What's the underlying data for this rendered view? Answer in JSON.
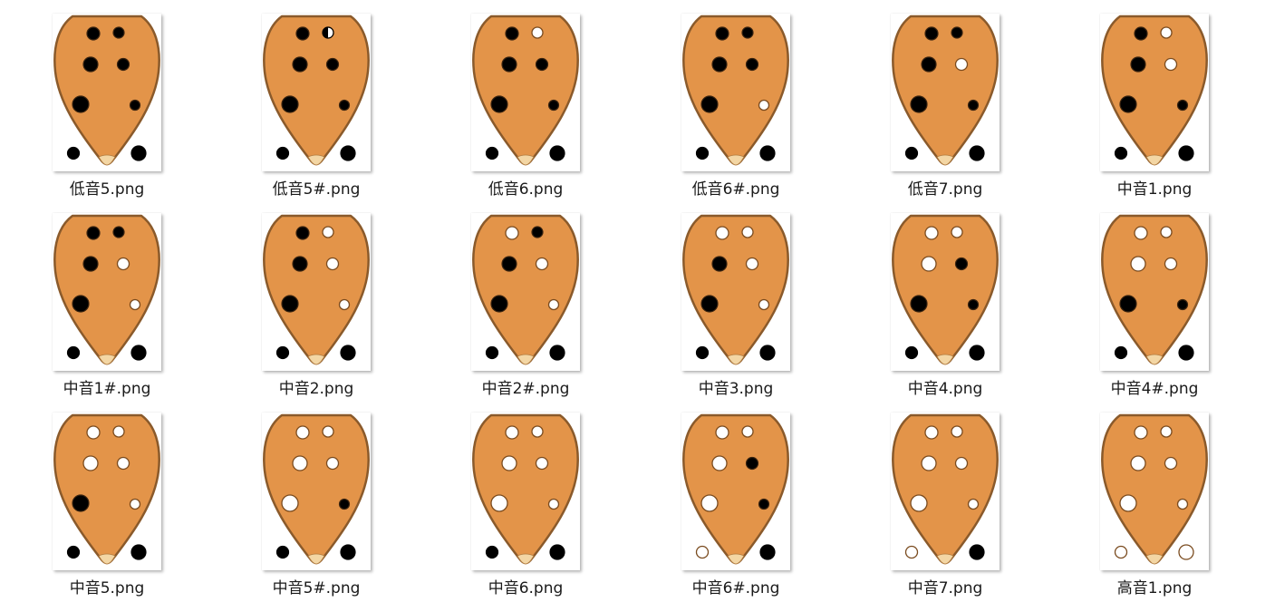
{
  "view": {
    "colors": {
      "body": "#e39449",
      "outline": "#8a5a2b",
      "hole_closed": "#000000",
      "hole_open": "#ffffff",
      "hole_rim": "#7a4b1f",
      "mouthpiece": "#f3d6a4"
    },
    "files": [
      {
        "name": "低音5.png",
        "holes": {
          "t1": 1,
          "t2": 1,
          "l2": 1,
          "r2": 1,
          "l3": 1,
          "r3": 1,
          "bl": 1,
          "br": 1
        }
      },
      {
        "name": "低音5#.png",
        "holes": {
          "t1": 1,
          "t2": "half",
          "l2": 1,
          "r2": 1,
          "l3": 1,
          "r3": 1,
          "bl": 1,
          "br": 1
        }
      },
      {
        "name": "低音6.png",
        "holes": {
          "t1": 1,
          "t2": 0,
          "l2": 1,
          "r2": 1,
          "l3": 1,
          "r3": 1,
          "bl": 1,
          "br": 1
        }
      },
      {
        "name": "低音6#.png",
        "holes": {
          "t1": 1,
          "t2": 1,
          "l2": 1,
          "r2": 1,
          "l3": 1,
          "r3": 0,
          "bl": 1,
          "br": 1
        }
      },
      {
        "name": "低音7.png",
        "holes": {
          "t1": 1,
          "t2": 1,
          "l2": 1,
          "r2": 0,
          "l3": 1,
          "r3": 1,
          "bl": 1,
          "br": 1
        }
      },
      {
        "name": "中音1.png",
        "holes": {
          "t1": 1,
          "t2": 0,
          "l2": 1,
          "r2": 0,
          "l3": 1,
          "r3": 1,
          "bl": 1,
          "br": 1
        }
      },
      {
        "name": "中音1#.png",
        "holes": {
          "t1": 1,
          "t2": 1,
          "l2": 1,
          "r2": 0,
          "l3": 1,
          "r3": 0,
          "bl": 1,
          "br": 1
        }
      },
      {
        "name": "中音2.png",
        "holes": {
          "t1": 1,
          "t2": 0,
          "l2": 1,
          "r2": 0,
          "l3": 1,
          "r3": 0,
          "bl": 1,
          "br": 1
        }
      },
      {
        "name": "中音2#.png",
        "holes": {
          "t1": 0,
          "t2": 1,
          "l2": 1,
          "r2": 0,
          "l3": 1,
          "r3": 0,
          "bl": 1,
          "br": 1
        }
      },
      {
        "name": "中音3.png",
        "holes": {
          "t1": 0,
          "t2": 0,
          "l2": 1,
          "r2": 0,
          "l3": 1,
          "r3": 0,
          "bl": 1,
          "br": 1
        }
      },
      {
        "name": "中音4.png",
        "holes": {
          "t1": 0,
          "t2": 0,
          "l2": 0,
          "r2": 1,
          "l3": 1,
          "r3": 1,
          "bl": 1,
          "br": 1
        }
      },
      {
        "name": "中音4#.png",
        "holes": {
          "t1": 0,
          "t2": 0,
          "l2": 0,
          "r2": 0,
          "l3": 1,
          "r3": 1,
          "bl": 1,
          "br": 1
        }
      },
      {
        "name": "中音5.png",
        "holes": {
          "t1": 0,
          "t2": 0,
          "l2": 0,
          "r2": 0,
          "l3": 1,
          "r3": 0,
          "bl": 1,
          "br": 1
        }
      },
      {
        "name": "中音5#.png",
        "holes": {
          "t1": 0,
          "t2": 0,
          "l2": 0,
          "r2": 0,
          "l3": 0,
          "r3": 1,
          "bl": 1,
          "br": 1
        }
      },
      {
        "name": "中音6.png",
        "holes": {
          "t1": 0,
          "t2": 0,
          "l2": 0,
          "r2": 0,
          "l3": 0,
          "r3": 0,
          "bl": 1,
          "br": 1
        }
      },
      {
        "name": "中音6#.png",
        "holes": {
          "t1": 0,
          "t2": 0,
          "l2": 0,
          "r2": 1,
          "l3": 0,
          "r3": 1,
          "bl": 0,
          "br": 1
        }
      },
      {
        "name": "中音7.png",
        "holes": {
          "t1": 0,
          "t2": 0,
          "l2": 0,
          "r2": 0,
          "l3": 0,
          "r3": 0,
          "bl": 0,
          "br": 1
        }
      },
      {
        "name": "高音1.png",
        "holes": {
          "t1": 0,
          "t2": 0,
          "l2": 0,
          "r2": 0,
          "l3": 0,
          "r3": 0,
          "bl": 0,
          "br": 0
        }
      }
    ]
  }
}
